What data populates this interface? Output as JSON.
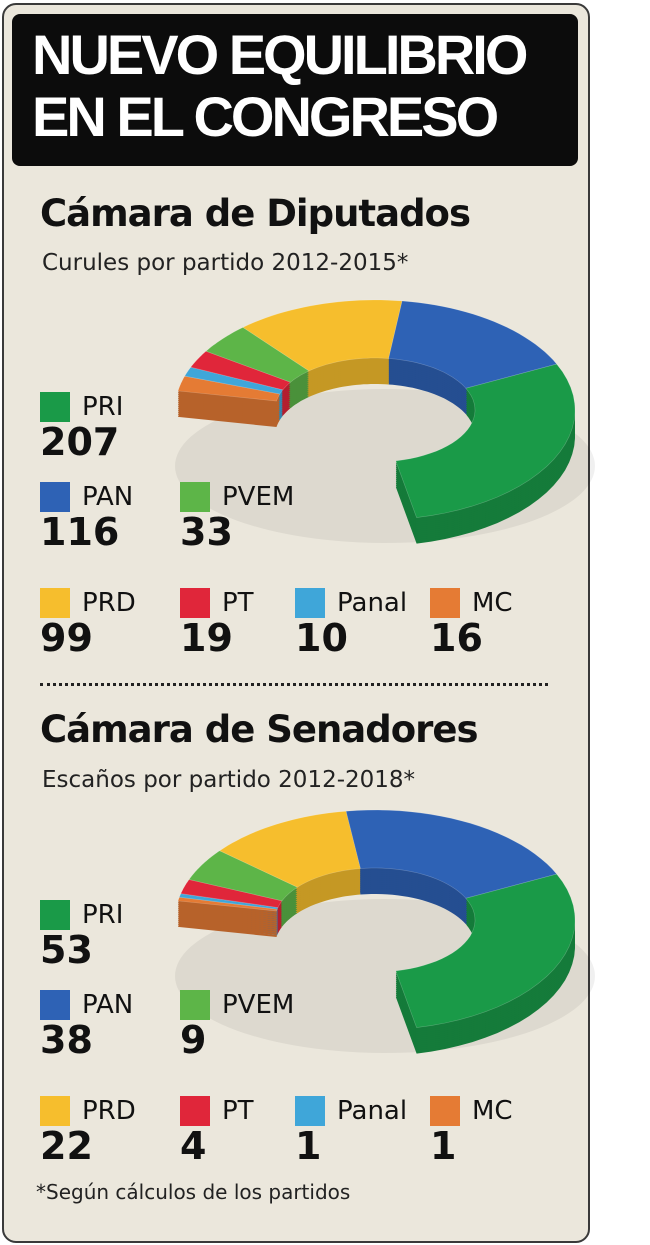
{
  "title_line1": "NUEVO EQUILIBRIO",
  "title_line2": "EN EL CONGRESO",
  "footnote": "*Según cálculos de los partidos",
  "colors": {
    "PRI": "#1a9a48",
    "PAN": "#2e62b5",
    "PVEM": "#5db548",
    "PRD": "#f6be2d",
    "PT": "#e0263a",
    "Panal": "#3fa6d9",
    "MC": "#e57b34",
    "background": "#ebe7dc"
  },
  "chart_data": [
    {
      "type": "hemicycle",
      "title": "Cámara de Diputados",
      "subtitle": "Curules por partido 2012-2015*",
      "categories": [
        "PRI",
        "PAN",
        "PVEM",
        "PRD",
        "PT",
        "Panal",
        "MC"
      ],
      "values": [
        207,
        116,
        33,
        99,
        19,
        10,
        16
      ],
      "labels": [
        "207",
        "116",
        "33",
        "99",
        "19",
        "10",
        "16"
      ],
      "seat_order": [
        "MC",
        "Panal",
        "PT",
        "PVEM",
        "PRD",
        "PAN",
        "PRI"
      ]
    },
    {
      "type": "hemicycle",
      "title": "Cámara de Senadores",
      "subtitle": "Escaños por partido 2012-2018*",
      "categories": [
        "PRI",
        "PAN",
        "PVEM",
        "PRD",
        "PT",
        "Panal",
        "MC"
      ],
      "values": [
        53,
        38,
        9,
        22,
        4,
        1,
        1
      ],
      "labels": [
        "53",
        "38",
        "9",
        "22",
        "4",
        "1",
        "1"
      ],
      "seat_order": [
        "MC",
        "Panal",
        "PT",
        "PVEM",
        "PRD",
        "PAN",
        "PRI"
      ]
    }
  ]
}
